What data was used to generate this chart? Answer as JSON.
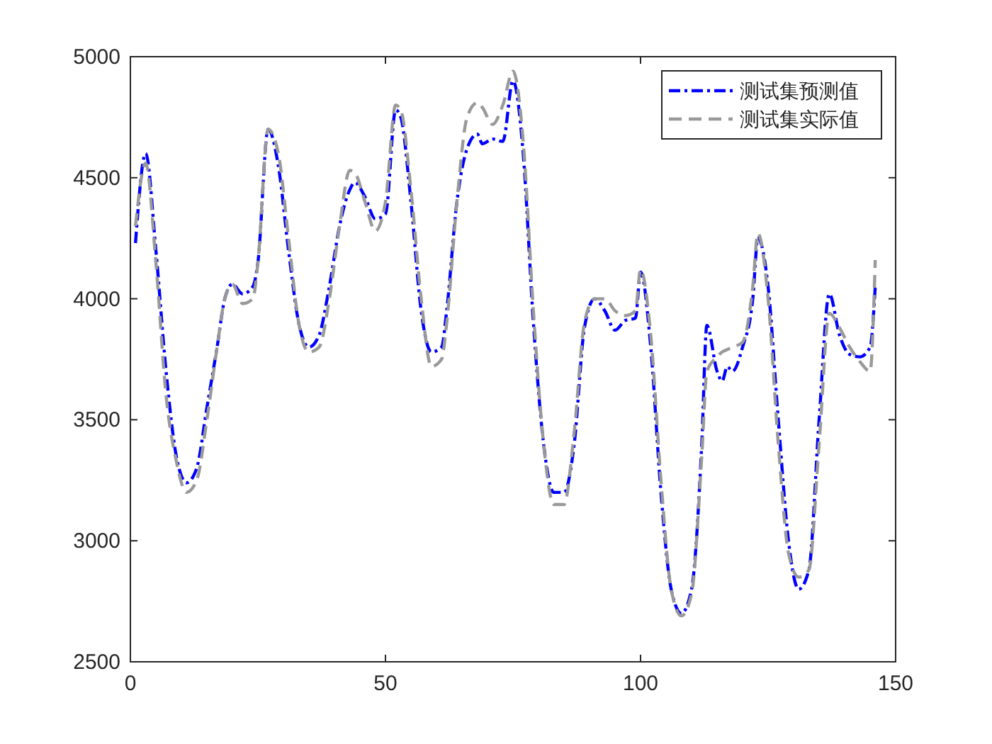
{
  "chart_data": {
    "type": "line",
    "x": [
      1,
      3,
      5,
      7,
      9,
      11,
      13,
      15,
      17,
      18.5,
      20,
      22,
      24,
      25,
      27,
      29,
      31,
      33,
      35,
      37,
      39,
      41,
      43,
      44,
      46,
      48,
      50,
      52,
      53,
      55,
      57,
      59,
      61,
      62,
      64,
      66,
      68,
      69,
      71,
      73,
      75,
      77,
      79,
      81,
      83,
      85,
      87,
      89,
      91,
      93,
      95,
      97,
      99,
      100,
      102,
      104,
      106,
      108,
      110,
      112,
      113,
      115,
      116,
      117,
      118,
      120,
      122,
      123,
      125,
      127,
      129,
      131,
      133,
      135,
      137,
      139,
      141,
      143,
      145,
      146
    ],
    "series": [
      {
        "name": "测试集预测值",
        "color": "#0000ff",
        "line_style": "dashdot",
        "values": [
          4230,
          4600,
          4200,
          3700,
          3350,
          3240,
          3300,
          3550,
          3800,
          4000,
          4060,
          4020,
          4050,
          4150,
          4700,
          4550,
          4200,
          3900,
          3800,
          3850,
          4050,
          4300,
          4450,
          4480,
          4420,
          4330,
          4350,
          4780,
          4750,
          4400,
          3950,
          3780,
          3800,
          3950,
          4400,
          4620,
          4680,
          4640,
          4660,
          4650,
          4900,
          4600,
          3900,
          3400,
          3200,
          3200,
          3400,
          3880,
          4000,
          3950,
          3870,
          3910,
          3920,
          4110,
          3800,
          3200,
          2800,
          2700,
          2800,
          3400,
          3890,
          3700,
          3660,
          3720,
          3700,
          3800,
          4000,
          4250,
          4050,
          3500,
          3000,
          2800,
          2880,
          3500,
          4020,
          3850,
          3770,
          3760,
          3800,
          4050
        ]
      },
      {
        "name": "测试集实际值",
        "color": "#999999",
        "line_style": "dashed",
        "values": [
          4300,
          4560,
          4150,
          3600,
          3330,
          3200,
          3250,
          3500,
          3800,
          4000,
          4060,
          3980,
          4000,
          4150,
          4700,
          4600,
          4250,
          3900,
          3780,
          3800,
          4000,
          4300,
          4530,
          4520,
          4400,
          4280,
          4400,
          4800,
          4780,
          4450,
          4000,
          3720,
          3750,
          3900,
          4400,
          4750,
          4810,
          4790,
          4720,
          4800,
          4940,
          4650,
          3950,
          3400,
          3150,
          3150,
          3450,
          3900,
          4000,
          4000,
          3950,
          3930,
          3950,
          4120,
          3850,
          3250,
          2800,
          2690,
          2780,
          3350,
          3700,
          3760,
          3780,
          3790,
          3800,
          3820,
          4050,
          4270,
          4000,
          3400,
          2950,
          2850,
          2880,
          3400,
          3940,
          3880,
          3800,
          3740,
          3700,
          4160
        ]
      }
    ],
    "xlim": [
      0,
      150
    ],
    "xticks": [
      0,
      50,
      100,
      150
    ],
    "ylim": [
      2500,
      5000
    ],
    "yticks": [
      2500,
      3000,
      3500,
      4000,
      4500,
      5000
    ],
    "grid": false,
    "legend": "top right"
  }
}
